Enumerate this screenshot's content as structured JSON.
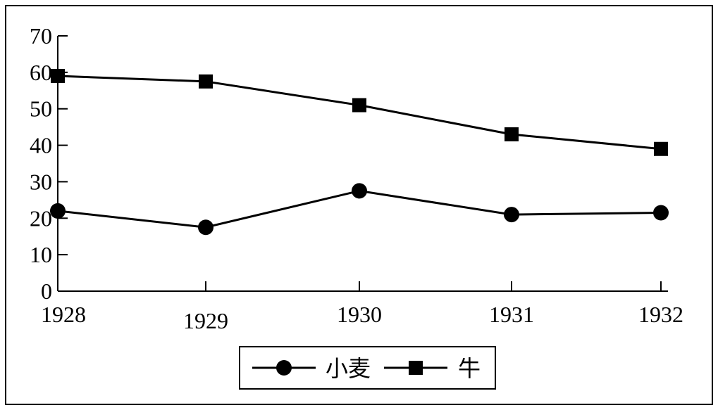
{
  "chart_data": {
    "type": "line",
    "x": [
      "1928",
      "1929",
      "1930",
      "1931",
      "1932"
    ],
    "y_ticks": [
      "0",
      "10",
      "20",
      "30",
      "40",
      "50",
      "60",
      "70"
    ],
    "ylim": [
      0,
      70
    ],
    "grid": false,
    "legend_position": "bottom-center",
    "series": [
      {
        "name": "小麦",
        "marker": "circle",
        "values": [
          22,
          17.5,
          27.5,
          21,
          21.5
        ]
      },
      {
        "name": "牛",
        "marker": "square",
        "values": [
          59,
          57.5,
          51,
          43,
          39
        ]
      }
    ],
    "colors": {
      "line": "#000000",
      "marker": "#000000",
      "background": "#ffffff"
    }
  }
}
